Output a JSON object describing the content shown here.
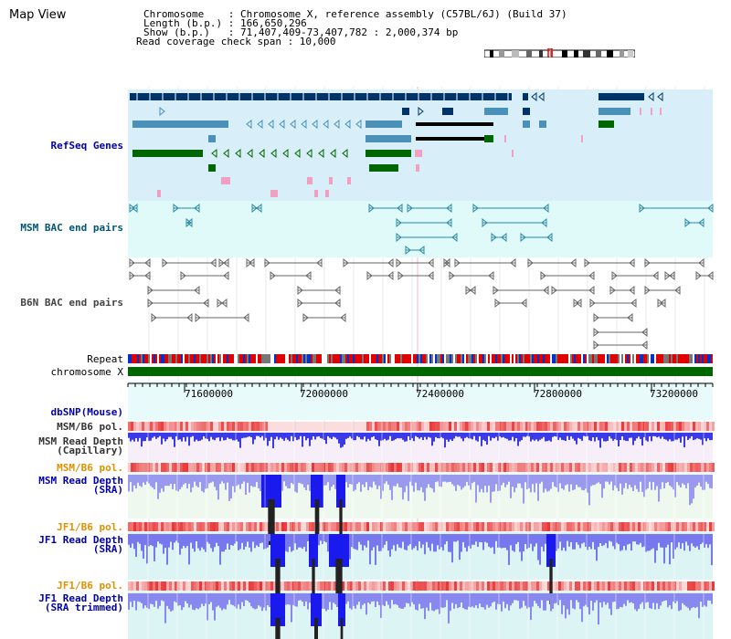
{
  "page": {
    "title": "Map View",
    "header": {
      "line1": "Chromosome    : Chromosome X, reference assembly (C57BL/6J) (Build 37)",
      "line2": "Length (b.p.) : 166,650,296",
      "line3": "Show (b.p.)   : 71,407,409-73,407,782 : 2,000,374 bp",
      "line4": "Read coverage check span : 10,000"
    }
  },
  "tracks": {
    "refseq": "RefSeq Genes",
    "msm_bac": "MSM BAC end pairs",
    "b6n_bac": "B6N BAC end pairs",
    "repeat": "Repeat",
    "chromosome": "chromosome X",
    "dbsnp": "dbSNP(Mouse)",
    "msm_b6_pol_1": "MSM/B6 pol.",
    "msm_depth_cap_1": "MSM Read Depth",
    "msm_depth_cap_2": "(Capillary)",
    "msm_b6_pol_2": "MSM/B6 pol.",
    "msm_depth_sra_1": "MSM Read Depth",
    "msm_depth_sra_2": "(SRA)",
    "jf1_b6_pol_1": "JF1/B6 pol.",
    "jf1_depth_sra_1": "JF1 Read Depth",
    "jf1_depth_sra_2": "(SRA)",
    "jf1_b6_pol_2": "JF1/B6 pol.",
    "jf1_depth_trim_1": "JF1 Read Depth",
    "jf1_depth_trim_2": "(SRA trimmed)"
  },
  "axis": {
    "ticks": [
      "71600000",
      "72000000",
      "72400000",
      "72800000",
      "73200000"
    ]
  },
  "colors": {
    "refseq_bg": "#d8eef8",
    "msm_bac_bg": "#e0fafa",
    "navy": "#003366",
    "steel": "#4a90b8",
    "green": "#006600",
    "chrom_green": "#006600",
    "depth_blue": "#3333ee",
    "pale_blue": "#8888ee",
    "pol_red": "#ee3333"
  }
}
